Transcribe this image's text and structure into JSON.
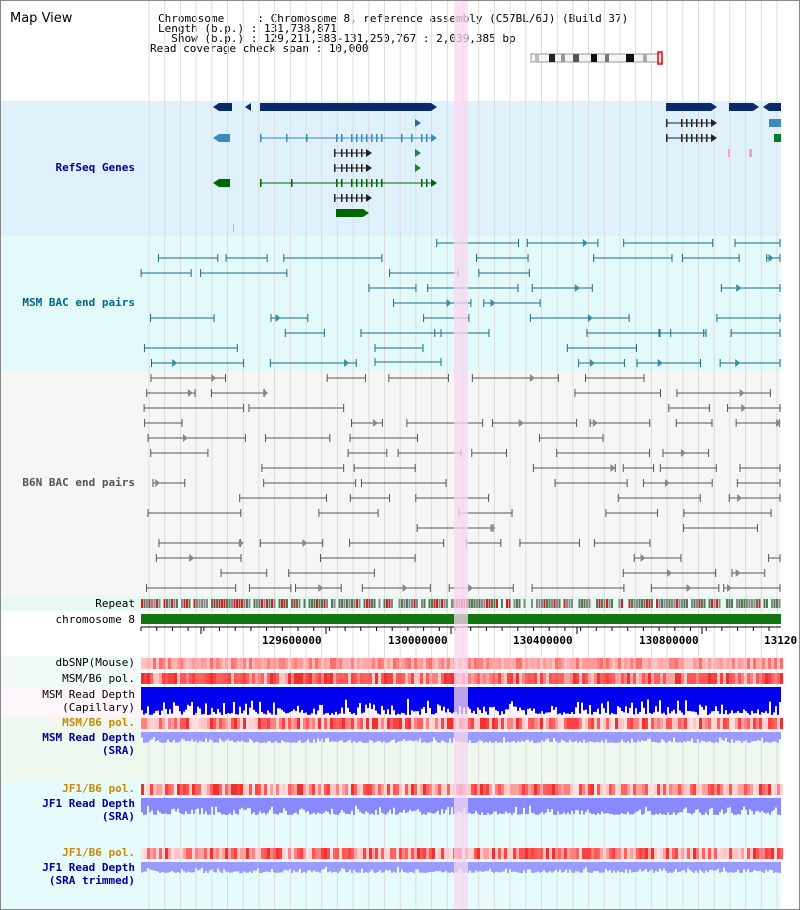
{
  "title": "Map View",
  "info": {
    "chromosome_label": "Chromosome     : ",
    "chromosome_value": "Chromosome 8, reference assembly (C57BL/6J) (Build 37)",
    "length_label": "Length (b.p.) : ",
    "length_value": "131,738,871",
    "show_label": "  Show (b.p.) : ",
    "show_value": "129,211,383-131,250,767 : 2,039,385 bp",
    "coverage_label": "Read coverage check span : ",
    "coverage_value": "10,000"
  },
  "tracks": {
    "refseq": "RefSeq Genes",
    "msm_bac": "MSM BAC end pairs",
    "b6n_bac": "B6N BAC end pairs",
    "repeat": "Repeat",
    "chromosome": "chromosome 8",
    "dbsnp": "dbSNP(Mouse)",
    "msm_b6_pol_1": "MSM/B6 pol.",
    "msm_read_depth_cap_1": "MSM Read Depth",
    "msm_read_depth_cap_2": "(Capillary)",
    "msm_b6_pol_2": "MSM/B6 pol.",
    "msm_read_depth_sra_1": "MSM Read Depth",
    "msm_read_depth_sra_2": "(SRA)",
    "jf1_b6_pol_1": "JF1/B6 pol.",
    "jf1_read_depth_sra_1": "JF1 Read Depth",
    "jf1_read_depth_sra_2": "(SRA)",
    "jf1_b6_pol_2": "JF1/B6 pol.",
    "jf1_read_depth_trim_1": "JF1 Read Depth",
    "jf1_read_depth_trim_2": "(SRA trimmed)"
  },
  "ruler": {
    "ticks": [
      "129600000",
      "130000000",
      "130400000",
      "130800000",
      "13120"
    ]
  },
  "colors": {
    "refseq_bg": "#dff2fb",
    "msm_bac_bg": "#e3fafa",
    "b6n_bac_bg": "#f6f6f6",
    "highlight": "#f8d8f0",
    "label_blue": "#000099",
    "label_teal": "#006688",
    "label_gray": "#555555",
    "label_orange": "#cc8800",
    "gene_navy": "#0a2a6a",
    "gene_green": "#006600",
    "chromosome_green": "#117711",
    "depth_blue": "#0000ee",
    "depth_light_blue": "#8888ff"
  }
}
